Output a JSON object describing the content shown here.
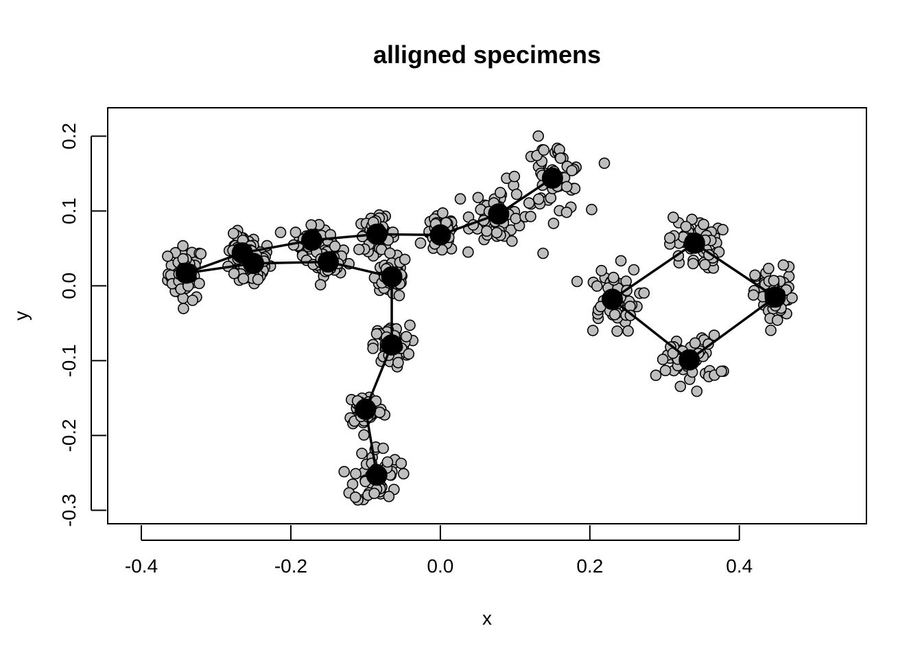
{
  "chart_data": {
    "type": "scatter",
    "title": "alligned specimens",
    "xlabel": "x",
    "ylabel": "y",
    "xlim": [
      -0.445,
      0.57
    ],
    "ylim": [
      -0.318,
      0.238
    ],
    "xticks": [
      -0.4,
      -0.2,
      0.0,
      0.2,
      0.4
    ],
    "xtick_labels": [
      "-0.4",
      "-0.2",
      "0.0",
      "0.2",
      "0.4"
    ],
    "yticks": [
      -0.3,
      -0.2,
      -0.1,
      0.0,
      0.1,
      0.2
    ],
    "ytick_labels": [
      "-0.3",
      "-0.2",
      "-0.1",
      "0.0",
      "0.1",
      "0.2"
    ],
    "grid": false,
    "colors": {
      "specimen_fill": "#bebebe",
      "mean_fill": "#000000",
      "stroke": "#000000"
    },
    "mean_shape": [
      [
        -0.34,
        0.017
      ],
      [
        -0.265,
        0.044
      ],
      [
        -0.25,
        0.03
      ],
      [
        -0.172,
        0.061
      ],
      [
        -0.15,
        0.032
      ],
      [
        -0.085,
        0.069
      ],
      [
        -0.065,
        0.012
      ],
      [
        0.0,
        0.068
      ],
      [
        0.078,
        0.096
      ],
      [
        0.15,
        0.144
      ],
      [
        -0.065,
        -0.079
      ],
      [
        -0.1,
        -0.165
      ],
      [
        -0.085,
        -0.253
      ],
      [
        0.23,
        -0.018
      ],
      [
        0.34,
        0.057
      ],
      [
        0.448,
        -0.015
      ],
      [
        0.333,
        -0.099
      ]
    ],
    "links": [
      [
        0,
        1
      ],
      [
        0,
        2
      ],
      [
        1,
        3
      ],
      [
        2,
        4
      ],
      [
        3,
        5
      ],
      [
        4,
        6
      ],
      [
        5,
        7
      ],
      [
        7,
        8
      ],
      [
        8,
        9
      ],
      [
        6,
        10
      ],
      [
        10,
        11
      ],
      [
        11,
        12
      ],
      [
        13,
        14
      ],
      [
        14,
        15
      ],
      [
        15,
        16
      ],
      [
        16,
        13
      ]
    ],
    "landmark_spread": [
      [
        0.012,
        0.018
      ],
      [
        0.01,
        0.012
      ],
      [
        0.012,
        0.016
      ],
      [
        0.012,
        0.009
      ],
      [
        0.01,
        0.009
      ],
      [
        0.012,
        0.011
      ],
      [
        0.011,
        0.015
      ],
      [
        0.01,
        0.012
      ],
      [
        0.018,
        0.02
      ],
      [
        0.022,
        0.025
      ],
      [
        0.012,
        0.013
      ],
      [
        0.012,
        0.012
      ],
      [
        0.015,
        0.02
      ],
      [
        0.018,
        0.022
      ],
      [
        0.017,
        0.018
      ],
      [
        0.013,
        0.02
      ],
      [
        0.02,
        0.016
      ]
    ],
    "specimen_points_per_landmark": 55
  }
}
